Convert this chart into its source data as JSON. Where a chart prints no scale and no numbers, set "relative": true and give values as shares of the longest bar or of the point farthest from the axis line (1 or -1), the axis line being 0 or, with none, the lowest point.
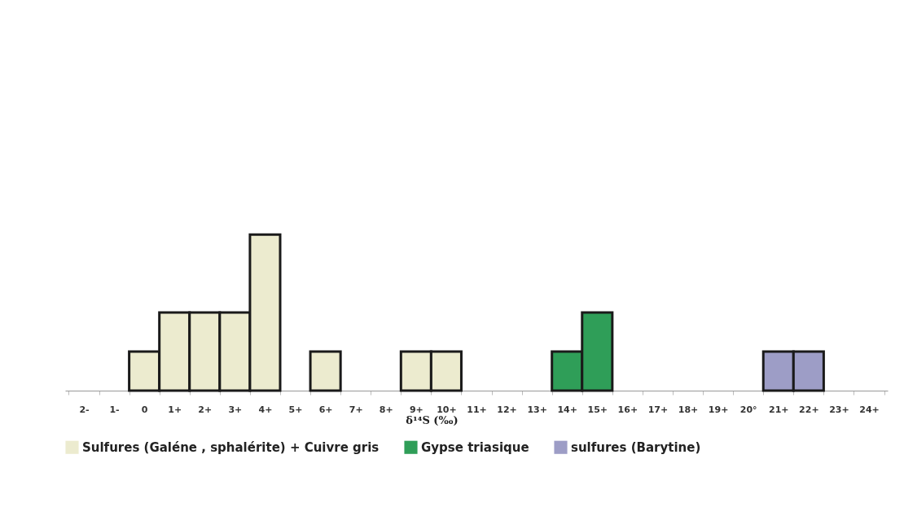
{
  "chart_data": {
    "type": "bar",
    "relative": true,
    "xlabel": "δ¹⁴S (‰)",
    "legend": "bottom",
    "categories": [
      "2-",
      "1-",
      "0",
      "1+",
      "2+",
      "3+",
      "4+",
      "5+",
      "6+",
      "7+",
      "8+",
      "9+",
      "10+",
      "11+",
      "12+",
      "13+",
      "14+",
      "15+",
      "16+",
      "17+",
      "18+",
      "19+",
      "20°",
      "21+",
      "22+",
      "23+",
      "24+"
    ],
    "series": [
      {
        "name": "Sulfures (Galéne , sphalérite) + Cuivre gris",
        "color": "#ecebcf",
        "values": [
          null,
          null,
          0.25,
          0.5,
          0.5,
          0.5,
          1,
          null,
          0.25,
          null,
          null,
          0.25,
          0.25,
          null,
          null,
          null,
          null,
          null,
          null,
          null,
          null,
          null,
          null,
          null,
          null,
          null,
          null
        ]
      },
      {
        "name": "Gypse triasique",
        "color": "#2f9e58",
        "values": [
          null,
          null,
          null,
          null,
          null,
          null,
          null,
          null,
          null,
          null,
          null,
          null,
          null,
          null,
          null,
          null,
          0.25,
          0.5,
          null,
          null,
          null,
          null,
          null,
          null,
          null,
          null,
          null
        ]
      },
      {
        "name": "sulfures (Barytine)",
        "color": "#9d9dc6",
        "values": [
          null,
          null,
          null,
          null,
          null,
          null,
          null,
          null,
          null,
          null,
          null,
          null,
          null,
          null,
          null,
          null,
          null,
          null,
          null,
          null,
          null,
          null,
          null,
          0.25,
          0.25,
          null,
          null
        ]
      }
    ]
  }
}
